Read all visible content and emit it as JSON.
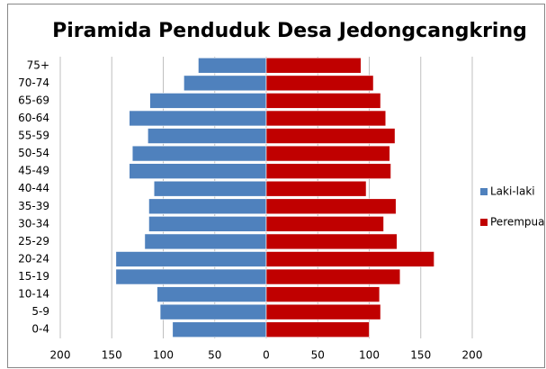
{
  "chart_data": {
    "type": "pyramid",
    "title": "Piramida Penduduk Desa Jedongcangkring",
    "categories": [
      "75+",
      "70-74",
      "65-69",
      "60-64",
      "55-59",
      "50-54",
      "45-49",
      "40-44",
      "35-39",
      "30-34",
      "25-29",
      "20-24",
      "15-19",
      "10-14",
      "5-9",
      "0-4"
    ],
    "series": [
      {
        "name": "Laki-laki",
        "color": "#4f81bd",
        "values": [
          -66,
          -80,
          -113,
          -133,
          -115,
          -130,
          -133,
          -109,
          -114,
          -114,
          -118,
          -146,
          -146,
          -106,
          -103,
          -91
        ]
      },
      {
        "name": "Perempua",
        "color": "#c00000",
        "values": [
          92,
          104,
          111,
          116,
          125,
          120,
          121,
          97,
          126,
          114,
          127,
          163,
          130,
          110,
          111,
          100
        ]
      }
    ],
    "xlim": [
      -200,
      200
    ],
    "xticks": [
      {
        "value": -200,
        "label": "200"
      },
      {
        "value": -150,
        "label": "150"
      },
      {
        "value": -100,
        "label": "100"
      },
      {
        "value": -50,
        "label": "50"
      },
      0,
      50,
      100,
      150,
      200
    ],
    "grid": true,
    "legend": "right"
  }
}
